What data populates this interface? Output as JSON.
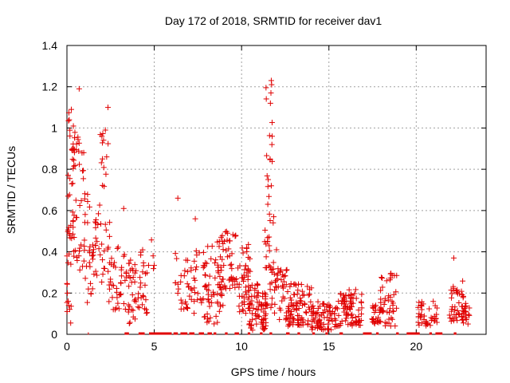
{
  "chart_data": {
    "type": "scatter",
    "title": "Day 172 of 2018, SRMTID for receiver dav1",
    "xlabel": "GPS time / hours",
    "ylabel": "SRMTID / TECUs",
    "xlim": [
      0,
      24
    ],
    "ylim": [
      0,
      1.4
    ],
    "xticks": [
      0,
      5,
      10,
      15,
      20
    ],
    "xtick_labels": [
      "0",
      "5",
      "10",
      "15",
      "20"
    ],
    "yticks": [
      0,
      0.2,
      0.4,
      0.6,
      0.8,
      1.0,
      1.2,
      1.4
    ],
    "ytick_labels": [
      "0",
      "0.2",
      "0.4",
      "0.6",
      "0.8",
      "1",
      "1.2",
      "1.4"
    ],
    "grid": true,
    "marker": "+",
    "color": "#e00000",
    "zero_segments": [
      [
        1.2,
        1.25
      ],
      [
        3.3,
        3.55
      ],
      [
        4.1,
        4.45
      ],
      [
        4.7,
        6.0
      ],
      [
        6.1,
        6.35
      ],
      [
        6.5,
        6.9
      ],
      [
        7.0,
        7.3
      ],
      [
        7.55,
        7.85
      ],
      [
        8.05,
        8.3
      ],
      [
        8.4,
        8.55
      ],
      [
        9.05,
        9.2
      ],
      [
        9.6,
        9.85
      ],
      [
        10.35,
        10.5
      ],
      [
        11.05,
        11.2
      ],
      [
        11.6,
        11.75
      ],
      [
        12.55,
        12.75
      ],
      [
        13.2,
        13.35
      ],
      [
        14.05,
        14.2
      ],
      [
        14.8,
        14.95
      ],
      [
        15.6,
        15.8
      ],
      [
        16.95,
        17.45
      ],
      [
        17.7,
        17.85
      ],
      [
        18.85,
        19.0
      ],
      [
        19.45,
        20.2
      ],
      [
        20.75,
        20.9
      ],
      [
        21.1,
        21.5
      ],
      [
        22.15,
        22.3
      ]
    ],
    "clusters": [
      {
        "x": [
          0.0,
          0.25
        ],
        "ymin": 0.05,
        "ymax": 0.42,
        "n": 14
      },
      {
        "x": [
          0.05,
          0.45
        ],
        "ymin": 0.45,
        "ymax": 1.1,
        "n": 30
      },
      {
        "x": [
          0.35,
          1.0
        ],
        "ymin": 0.3,
        "ymax": 0.98,
        "n": 40
      },
      {
        "x": [
          1.0,
          1.6
        ],
        "ymin": 0.15,
        "ymax": 0.72,
        "n": 30
      },
      {
        "x": [
          1.6,
          2.5
        ],
        "ymin": 0.25,
        "ymax": 0.68,
        "n": 32
      },
      {
        "x": [
          1.9,
          2.45
        ],
        "ymin": 0.7,
        "ymax": 1.0,
        "n": 12
      },
      {
        "x": [
          2.4,
          3.5
        ],
        "ymin": 0.12,
        "ymax": 0.45,
        "n": 38
      },
      {
        "x": [
          3.5,
          4.0
        ],
        "ymin": 0.05,
        "ymax": 0.38,
        "n": 28
      },
      {
        "x": [
          3.9,
          4.6
        ],
        "ymin": 0.1,
        "ymax": 0.45,
        "n": 26
      },
      {
        "x": [
          4.6,
          5.0
        ],
        "ymin": 0.3,
        "ymax": 0.47,
        "n": 5
      },
      {
        "x": [
          6.2,
          6.5
        ],
        "ymin": 0.12,
        "ymax": 0.44,
        "n": 7
      },
      {
        "x": [
          6.5,
          7.3
        ],
        "ymin": 0.1,
        "ymax": 0.38,
        "n": 30
      },
      {
        "x": [
          7.3,
          7.8
        ],
        "ymin": 0.15,
        "ymax": 0.42,
        "n": 12
      },
      {
        "x": [
          7.8,
          9.0
        ],
        "ymin": 0.05,
        "ymax": 0.43,
        "n": 60
      },
      {
        "x": [
          8.6,
          9.8
        ],
        "ymin": 0.22,
        "ymax": 0.5,
        "n": 55
      },
      {
        "x": [
          9.8,
          10.5
        ],
        "ymin": 0.1,
        "ymax": 0.44,
        "n": 45
      },
      {
        "x": [
          10.4,
          11.4
        ],
        "ymin": 0.02,
        "ymax": 0.25,
        "n": 75
      },
      {
        "x": [
          11.3,
          11.85
        ],
        "ymin": 0.3,
        "ymax": 1.2,
        "n": 30
      },
      {
        "x": [
          11.3,
          11.85
        ],
        "ymin": 0.12,
        "ymax": 0.5,
        "n": 20
      },
      {
        "x": [
          11.85,
          12.6
        ],
        "ymin": 0.07,
        "ymax": 0.32,
        "n": 40
      },
      {
        "x": [
          12.6,
          14.0
        ],
        "ymin": 0.04,
        "ymax": 0.25,
        "n": 85
      },
      {
        "x": [
          14.0,
          15.5
        ],
        "ymin": 0.02,
        "ymax": 0.16,
        "n": 80
      },
      {
        "x": [
          15.5,
          16.9
        ],
        "ymin": 0.04,
        "ymax": 0.22,
        "n": 80
      },
      {
        "x": [
          17.4,
          17.9
        ],
        "ymin": 0.05,
        "ymax": 0.15,
        "n": 20
      },
      {
        "x": [
          17.9,
          18.9
        ],
        "ymin": 0.04,
        "ymax": 0.3,
        "n": 50
      },
      {
        "x": [
          20.1,
          21.2
        ],
        "ymin": 0.04,
        "ymax": 0.16,
        "n": 40
      },
      {
        "x": [
          21.9,
          22.7
        ],
        "ymin": 0.06,
        "ymax": 0.27,
        "n": 40
      },
      {
        "x": [
          22.6,
          23.1
        ],
        "ymin": 0.05,
        "ymax": 0.16,
        "n": 22
      }
    ],
    "outliers": [
      [
        0.7,
        1.19
      ],
      [
        0.13,
        1.04
      ],
      [
        0.25,
        1.09
      ],
      [
        2.35,
        1.1
      ],
      [
        2.2,
        0.99
      ],
      [
        2.0,
        0.96
      ],
      [
        3.25,
        0.61
      ],
      [
        6.35,
        0.66
      ],
      [
        7.35,
        0.56
      ],
      [
        11.7,
        1.23
      ],
      [
        11.72,
        1.21
      ],
      [
        11.68,
        1.17
      ],
      [
        11.65,
        1.12
      ],
      [
        11.75,
        0.96
      ],
      [
        11.7,
        0.72
      ],
      [
        12.0,
        0.41
      ],
      [
        22.15,
        0.37
      ]
    ]
  }
}
